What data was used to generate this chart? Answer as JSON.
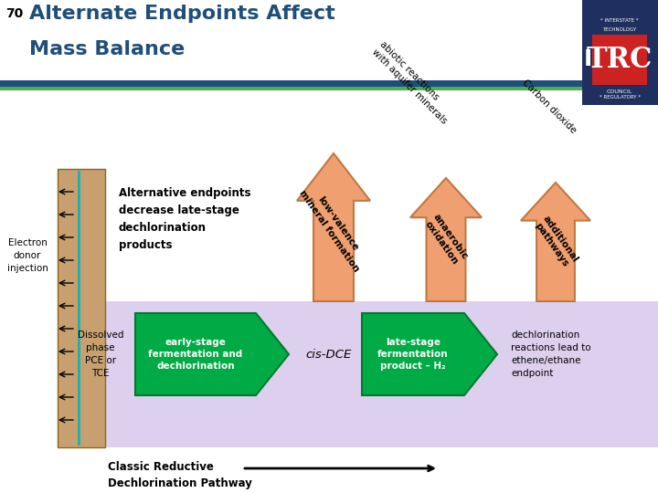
{
  "title_num": "70",
  "title_line1": "Alternate Endpoints Affect",
  "title_line2": "Mass Balance",
  "title_color": "#1F4E79",
  "bg_color": "#FFFFFF",
  "header_bar_color1": "#1F4E79",
  "header_bar_color2": "#4CAF50",
  "purple_bg": "#DDD0EE",
  "teal_arrow_color": "#00AA44",
  "orange_arrow_color": "#F0A070",
  "orange_edge_color": "#C07840",
  "soil_color": "#C8A070",
  "soil_edge_color": "#8B6914",
  "soil_line_color": "#20B2AA",
  "text_alt_endpoints": "Alternative endpoints\ndecrease late-stage\ndechlorination\nproducts",
  "text_electron": "Electron\ndonor\ninjection",
  "text_dissolved": "Dissolved\nphase\nPCE or\nTCE",
  "text_early_stage": "early-stage\nfermentation and\ndechlorination",
  "text_cis_dce": "cis-DCE",
  "text_late_stage": "late-stage\nfermentation\nproduct – H₂",
  "text_dechlorination": "dechlorination\nreactions lead to\nethene/ethane\nendpoint",
  "text_classic": "Classic Reductive\nDechlorination Pathway",
  "arrow1_label": "low-valence\nmineral formation",
  "arrow2_label": "anaerobic\noxidation",
  "arrow3_label": "additional\npathways",
  "label_abiotic": "abiotic reactions\nwith aquifer minerals",
  "label_carbon": "Carbon dioxide",
  "itrc_bg": "#1F4E79"
}
